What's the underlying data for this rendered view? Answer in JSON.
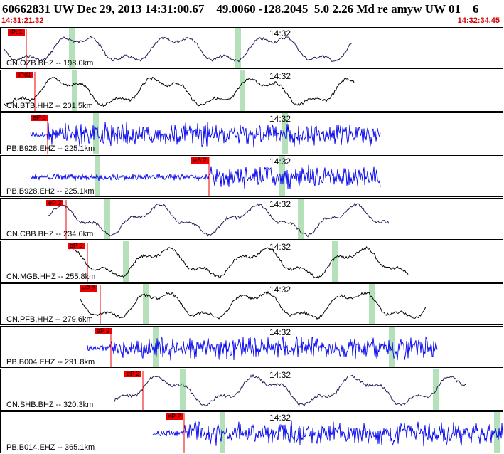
{
  "header": {
    "title": "60662831 UW Dec 29, 2013 14:31:00.67    49.0060 -128.2045  5.0 2.26 Md re amyw UW 01    6",
    "time_start": "14:31:21.32",
    "time_end": "14:32:34.45"
  },
  "colors": {
    "pick": "#ee0000",
    "highlight": "#a8dcae",
    "trace_black": "#000000",
    "trace_purple": "#2a1a55",
    "trace_blue": "#0000ee"
  },
  "panels": [
    {
      "station": "CN.OZB.BHZ -- 198.0km",
      "time_mark": "14:32",
      "pick": "iPc1",
      "color": "purple",
      "style": "long"
    },
    {
      "station": "CN.BTB.HHZ -- 201.5km",
      "time_mark": "14:32",
      "pick": "iPd1",
      "color": "black",
      "style": "long"
    },
    {
      "station": "PB.B928.EHZ -- 225.1km",
      "time_mark": "14:32",
      "pick": "eP 3",
      "color": "blue",
      "style": "noise"
    },
    {
      "station": "PB.B928.EH2 -- 225.1km",
      "time_mark": "14:32",
      "pick": "eS 2",
      "color": "blue",
      "style": "noise"
    },
    {
      "station": "CN.CBB.BHZ -- 234.6km",
      "time_mark": "14:32",
      "pick": "eP 2",
      "color": "purple",
      "style": "long"
    },
    {
      "station": "CN.MGB.HHZ -- 255.8km",
      "time_mark": "14:32",
      "pick": "eP 2",
      "color": "black",
      "style": "long"
    },
    {
      "station": "CN.PFB.HHZ -- 279.6km",
      "time_mark": "14:32",
      "pick": "eP 3",
      "color": "black",
      "style": "long"
    },
    {
      "station": "PB.B004.EHZ -- 291.8km",
      "time_mark": "14:32",
      "pick": "eP 2",
      "color": "blue",
      "style": "noise"
    },
    {
      "station": "CN.SHB.BHZ -- 320.3km",
      "time_mark": "14:32",
      "pick": "eP 2",
      "color": "purple",
      "style": "long"
    },
    {
      "station": "PB.B014.EHZ -- 365.1km",
      "time_mark": "14:32",
      "pick": "eP 2",
      "color": "blue",
      "style": "noise"
    }
  ]
}
